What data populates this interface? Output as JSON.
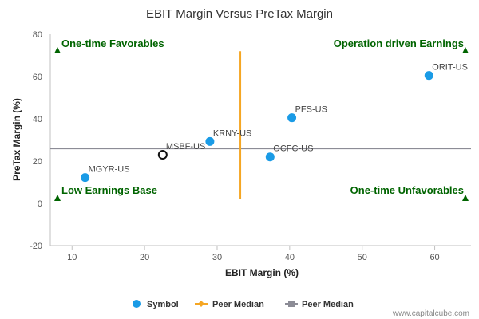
{
  "chart_data": {
    "type": "scatter",
    "title": "EBIT Margin Versus PreTax Margin",
    "xlabel": "EBIT Margin (%)",
    "ylabel": "PreTax Margin (%)",
    "xlim": [
      7,
      65
    ],
    "ylim": [
      -20,
      80
    ],
    "xticks": [
      10,
      20,
      30,
      40,
      50,
      60
    ],
    "yticks": [
      -20,
      0,
      20,
      40,
      60,
      80
    ],
    "grid": false,
    "legend_position": "bottom",
    "series": [
      {
        "name": "Symbol",
        "color": "#1a9be6",
        "points": [
          {
            "label": "ORIT-US",
            "x": 59.2,
            "y": 60.5
          },
          {
            "label": "PFS-US",
            "x": 40.3,
            "y": 40.5
          },
          {
            "label": "KRNY-US",
            "x": 29.0,
            "y": 29.3
          },
          {
            "label": "OCFC-US",
            "x": 37.3,
            "y": 22.0
          },
          {
            "label": "MGYR-US",
            "x": 11.8,
            "y": 12.2
          }
        ]
      }
    ],
    "highlight": {
      "label": "MSBF-US",
      "x": 22.5,
      "y": 23.0
    },
    "peer_median_x": {
      "name": "Peer Median",
      "value": 33.2,
      "y_range": [
        2,
        72
      ],
      "color": "#f5a623"
    },
    "peer_median_y": {
      "name": "Peer Median",
      "value": 26.0,
      "color": "#8c8c96"
    },
    "quadrants": {
      "top_left": "One-time Favorables",
      "top_right": "Operation driven Earnings",
      "bottom_left": "Low Earnings Base",
      "bottom_right": "One-time Unfavorables"
    },
    "quadrant_marker_color": "#006400"
  },
  "legend": {
    "items": [
      {
        "label": "Symbol",
        "type": "dot",
        "color": "#1a9be6"
      },
      {
        "label": "Peer Median",
        "type": "diamond-line",
        "color": "#f5a623"
      },
      {
        "label": "Peer Median",
        "type": "square-line",
        "color": "#8c8c96"
      }
    ]
  },
  "credit": "www.capitalcube.com"
}
